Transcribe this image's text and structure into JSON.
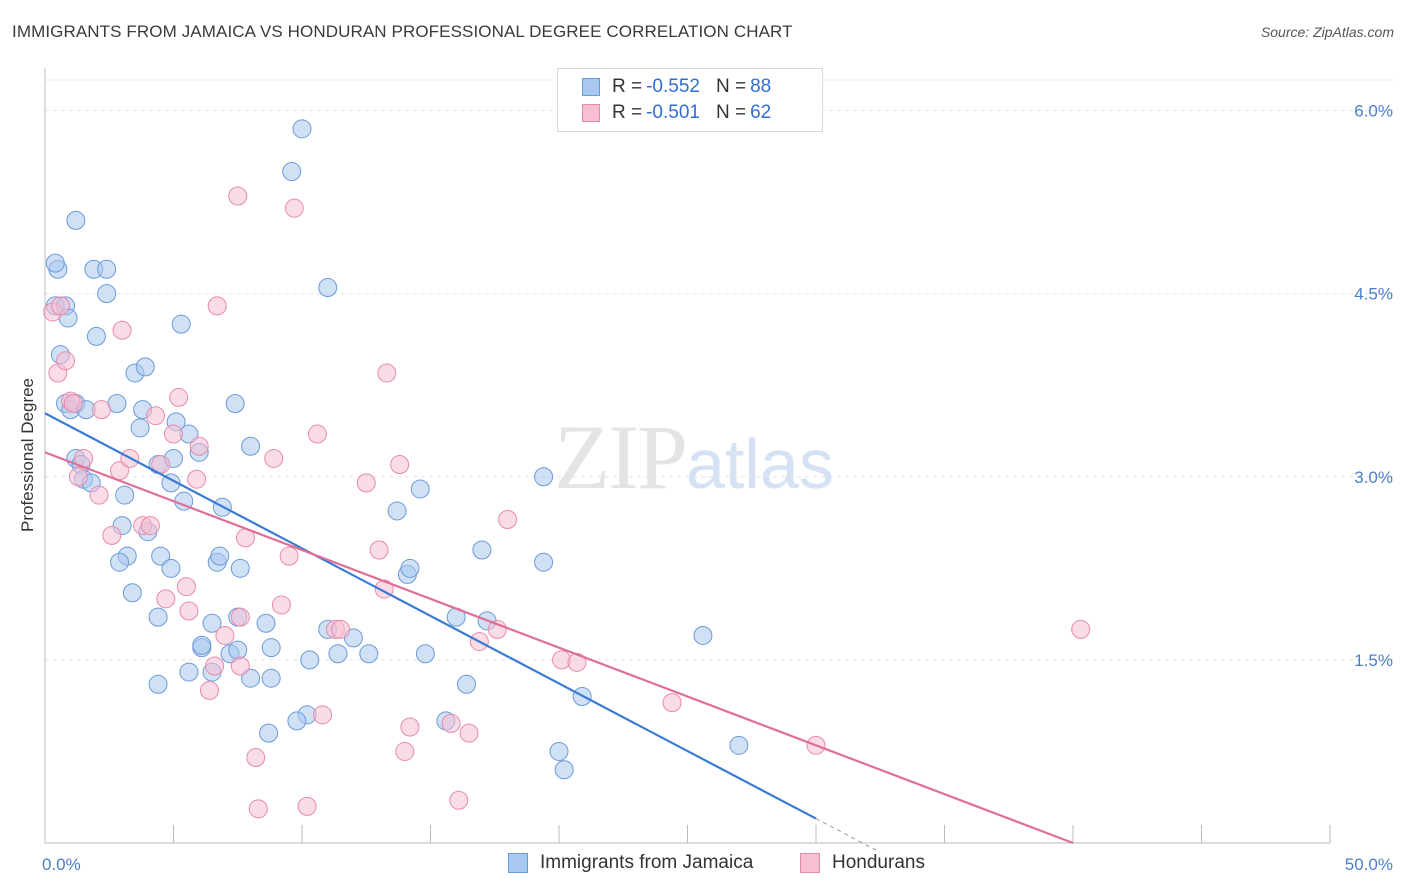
{
  "title": "IMMIGRANTS FROM JAMAICA VS HONDURAN PROFESSIONAL DEGREE CORRELATION CHART",
  "source": "Source: ZipAtlas.com",
  "watermark": {
    "zip": "ZIP",
    "atlas": "atlas"
  },
  "colors": {
    "blue": "#a9c8ef",
    "blue_stroke": "#6b9ad8",
    "blue_line": "#3a7bd5",
    "pink": "#f6bfd2",
    "pink_stroke": "#e88aab",
    "pink_line": "#e06e97",
    "grid": "#e3e3e3",
    "tick": "#4a7fc9"
  },
  "legend": {
    "rows": [
      {
        "r_label": "R =",
        "r_value": "-0.552",
        "n_label": "N =",
        "n_value": "88"
      },
      {
        "r_label": "R =",
        "r_value": "-0.501",
        "n_label": "N =",
        "n_value": "62"
      }
    ]
  },
  "bottom_legend": [
    "Immigrants from Jamaica",
    "Hondurans"
  ],
  "chart_data": {
    "type": "scatter",
    "title": "IMMIGRANTS FROM JAMAICA VS HONDURAN PROFESSIONAL DEGREE CORRELATION CHART",
    "xlabel": "",
    "ylabel": "Professional Degree",
    "xlim": [
      0,
      50
    ],
    "ylim": [
      0,
      6.25
    ],
    "x_tick_labels": [
      "0.0%",
      "50.0%"
    ],
    "y_ticks": [
      1.5,
      3.0,
      4.5,
      6.0
    ],
    "y_tick_labels": [
      "1.5%",
      "3.0%",
      "4.5%",
      "6.0%"
    ],
    "series": [
      {
        "name": "Immigrants from Jamaica",
        "R": -0.552,
        "N": 88,
        "trend": {
          "x0": 0,
          "y0": 3.52,
          "x1": 30,
          "y1": 0.2,
          "dash_to_x": 32.5
        },
        "points": [
          [
            0.4,
            4.4
          ],
          [
            0.5,
            4.7
          ],
          [
            0.4,
            4.75
          ],
          [
            0.8,
            4.4
          ],
          [
            0.9,
            4.3
          ],
          [
            0.6,
            4.0
          ],
          [
            0.8,
            3.6
          ],
          [
            1.0,
            3.55
          ],
          [
            1.2,
            3.6
          ],
          [
            1.6,
            3.55
          ],
          [
            1.2,
            3.15
          ],
          [
            1.4,
            3.1
          ],
          [
            1.5,
            2.98
          ],
          [
            1.8,
            2.95
          ],
          [
            1.2,
            5.1
          ],
          [
            1.9,
            4.7
          ],
          [
            2.4,
            4.7
          ],
          [
            2.4,
            4.5
          ],
          [
            2.0,
            4.15
          ],
          [
            3.5,
            3.85
          ],
          [
            3.9,
            3.9
          ],
          [
            2.8,
            3.6
          ],
          [
            3.8,
            3.55
          ],
          [
            3.7,
            3.4
          ],
          [
            4.4,
            3.1
          ],
          [
            5.1,
            3.45
          ],
          [
            5.6,
            3.35
          ],
          [
            6.0,
            3.2
          ],
          [
            5.0,
            3.15
          ],
          [
            4.9,
            2.95
          ],
          [
            3.1,
            2.85
          ],
          [
            3.0,
            2.6
          ],
          [
            4.0,
            2.55
          ],
          [
            5.4,
            2.8
          ],
          [
            6.9,
            2.75
          ],
          [
            7.4,
            3.6
          ],
          [
            8.0,
            3.25
          ],
          [
            10.0,
            5.85
          ],
          [
            9.6,
            5.5
          ],
          [
            11.0,
            4.55
          ],
          [
            5.3,
            4.25
          ],
          [
            3.2,
            2.35
          ],
          [
            2.9,
            2.3
          ],
          [
            4.5,
            2.35
          ],
          [
            4.9,
            2.25
          ],
          [
            3.4,
            2.05
          ],
          [
            4.4,
            1.85
          ],
          [
            6.5,
            1.8
          ],
          [
            6.7,
            2.3
          ],
          [
            6.8,
            2.35
          ],
          [
            7.6,
            2.25
          ],
          [
            7.5,
            1.85
          ],
          [
            8.6,
            1.8
          ],
          [
            6.1,
            1.6
          ],
          [
            6.1,
            1.62
          ],
          [
            7.2,
            1.55
          ],
          [
            7.5,
            1.58
          ],
          [
            8.8,
            1.6
          ],
          [
            10.3,
            1.5
          ],
          [
            11.0,
            1.75
          ],
          [
            11.4,
            1.55
          ],
          [
            12.0,
            1.68
          ],
          [
            12.6,
            1.55
          ],
          [
            10.2,
            1.05
          ],
          [
            9.8,
            1.0
          ],
          [
            8.7,
            0.9
          ],
          [
            8.8,
            1.35
          ],
          [
            8.0,
            1.35
          ],
          [
            6.5,
            1.4
          ],
          [
            5.6,
            1.4
          ],
          [
            4.4,
            1.3
          ],
          [
            13.7,
            2.72
          ],
          [
            14.1,
            2.2
          ],
          [
            14.2,
            2.25
          ],
          [
            14.6,
            2.9
          ],
          [
            14.8,
            1.55
          ],
          [
            15.6,
            1.0
          ],
          [
            16.0,
            1.85
          ],
          [
            16.4,
            1.3
          ],
          [
            17.0,
            2.4
          ],
          [
            17.2,
            1.82
          ],
          [
            19.4,
            3.0
          ],
          [
            19.4,
            2.3
          ],
          [
            20.0,
            0.75
          ],
          [
            20.2,
            0.6
          ],
          [
            20.9,
            1.2
          ],
          [
            25.6,
            1.7
          ],
          [
            27.0,
            0.8
          ]
        ]
      },
      {
        "name": "Hondurans",
        "R": -0.501,
        "N": 62,
        "trend": {
          "x0": 0,
          "y0": 3.2,
          "x1": 40,
          "y1": 0.0
        },
        "points": [
          [
            0.3,
            4.35
          ],
          [
            0.5,
            3.85
          ],
          [
            0.6,
            4.4
          ],
          [
            0.8,
            3.95
          ],
          [
            1.0,
            3.62
          ],
          [
            1.1,
            3.6
          ],
          [
            1.3,
            3.0
          ],
          [
            1.5,
            3.15
          ],
          [
            2.2,
            3.55
          ],
          [
            2.1,
            2.85
          ],
          [
            2.6,
            2.52
          ],
          [
            2.9,
            3.05
          ],
          [
            3.0,
            4.2
          ],
          [
            3.3,
            3.15
          ],
          [
            3.8,
            2.6
          ],
          [
            4.1,
            2.6
          ],
          [
            4.3,
            3.5
          ],
          [
            4.5,
            3.1
          ],
          [
            4.7,
            2.0
          ],
          [
            5.0,
            3.35
          ],
          [
            5.2,
            3.65
          ],
          [
            5.5,
            2.1
          ],
          [
            5.6,
            1.9
          ],
          [
            6.0,
            3.25
          ],
          [
            5.9,
            2.98
          ],
          [
            6.4,
            1.25
          ],
          [
            6.6,
            1.45
          ],
          [
            6.7,
            4.4
          ],
          [
            7.0,
            1.7
          ],
          [
            7.6,
            1.85
          ],
          [
            7.6,
            1.45
          ],
          [
            7.8,
            2.5
          ],
          [
            7.5,
            5.3
          ],
          [
            8.2,
            0.7
          ],
          [
            8.3,
            0.28
          ],
          [
            8.9,
            3.15
          ],
          [
            9.2,
            1.95
          ],
          [
            9.5,
            2.35
          ],
          [
            9.7,
            5.2
          ],
          [
            10.2,
            0.3
          ],
          [
            10.6,
            3.35
          ],
          [
            10.8,
            1.05
          ],
          [
            11.3,
            1.75
          ],
          [
            11.5,
            1.75
          ],
          [
            12.5,
            2.95
          ],
          [
            13.0,
            2.4
          ],
          [
            13.2,
            2.08
          ],
          [
            13.3,
            3.85
          ],
          [
            13.8,
            3.1
          ],
          [
            14.0,
            0.75
          ],
          [
            14.2,
            0.95
          ],
          [
            15.8,
            0.98
          ],
          [
            16.1,
            0.35
          ],
          [
            16.5,
            0.9
          ],
          [
            16.9,
            1.65
          ],
          [
            17.6,
            1.75
          ],
          [
            18.0,
            2.65
          ],
          [
            20.1,
            1.5
          ],
          [
            20.7,
            1.48
          ],
          [
            24.4,
            1.15
          ],
          [
            30.0,
            0.8
          ],
          [
            40.3,
            1.75
          ]
        ]
      }
    ]
  }
}
